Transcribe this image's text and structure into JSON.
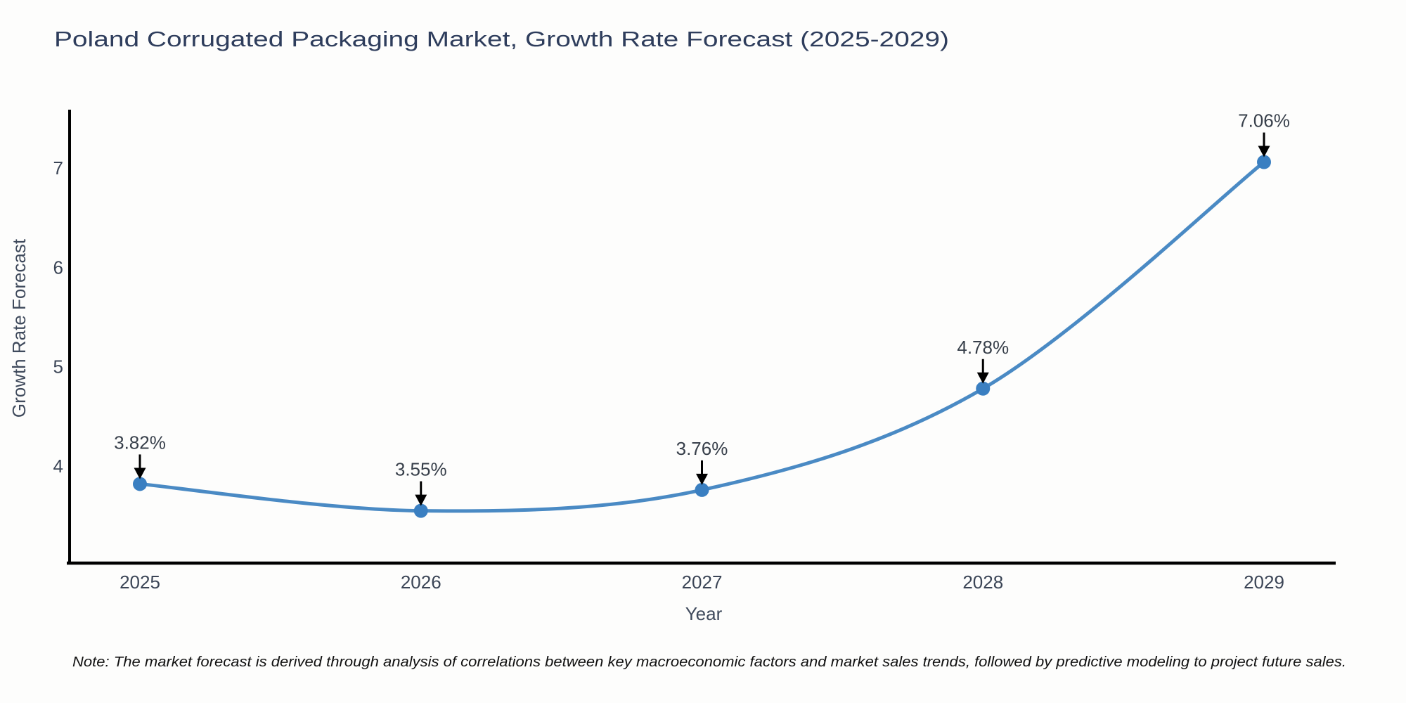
{
  "figure": {
    "note": "Note: The market forecast is derived through analysis of correlations between key macroeconomic factors and market sales trends, followed by predictive modeling to project future sales."
  },
  "chart_data": {
    "type": "line",
    "title": "Poland Corrugated Packaging Market, Growth Rate Forecast (2025-2029)",
    "xlabel": "Year",
    "ylabel": "Growth Rate Forecast",
    "categories": [
      "2025",
      "2026",
      "2027",
      "2028",
      "2029"
    ],
    "x": [
      2025,
      2026,
      2027,
      2028,
      2029
    ],
    "series": [
      {
        "name": "Growth Rate Forecast",
        "values": [
          3.82,
          3.55,
          3.76,
          4.78,
          7.06
        ]
      }
    ],
    "point_labels": [
      "3.82%",
      "3.55%",
      "3.76%",
      "4.78%",
      "7.06%"
    ],
    "yticks": [
      4,
      5,
      6,
      7
    ],
    "ylim": [
      3.3,
      7.45
    ],
    "grid": false,
    "legend_position": "none",
    "smooth_line": true,
    "line_color": "#4a8ac4",
    "marker_color": "#3a7fc1",
    "annotation_arrow_color": "#000000",
    "axis_color": "#000000"
  }
}
